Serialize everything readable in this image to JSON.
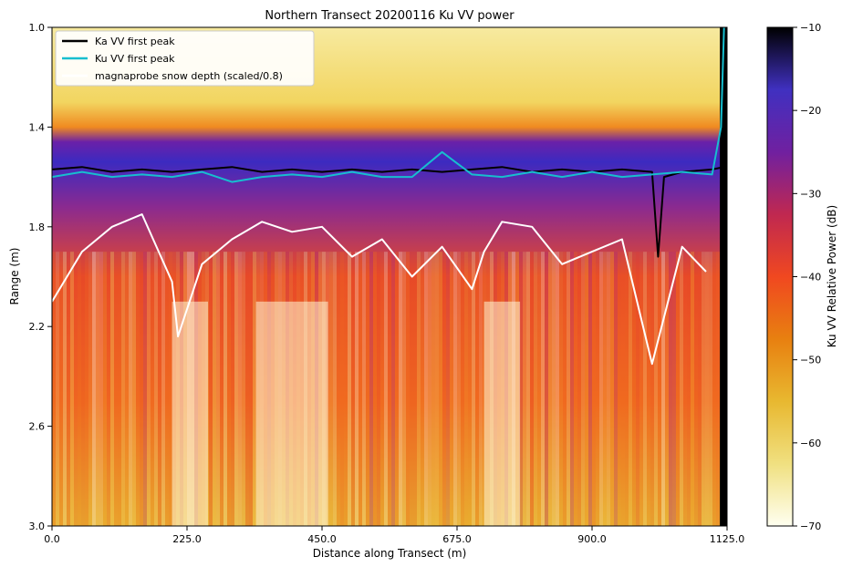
{
  "chart_data": {
    "type": "heatmap",
    "title": "Northern Transect 20200116 Ku VV power",
    "xlabel": "Distance along Transect (m)",
    "ylabel": "Range (m)",
    "xlim": [
      0,
      1125
    ],
    "ylim": [
      3.0,
      1.0
    ],
    "x_ticks": [
      "0.0",
      "225.0",
      "450.0",
      "675.0",
      "900.0",
      "1125.0"
    ],
    "y_ticks": [
      "1.0",
      "1.4",
      "1.8",
      "2.2",
      "2.6",
      "3.0"
    ],
    "colorbar": {
      "label": "Ku VV Relative Power (dB)",
      "range": [
        -70,
        -10
      ],
      "ticks": [
        "−10",
        "−20",
        "−30",
        "−40",
        "−50",
        "−60",
        "−70"
      ],
      "colormap": [
        "#fffff0",
        "#f0e080",
        "#e8b830",
        "#e88010",
        "#f04820",
        "#c02850",
        "#7020a0",
        "#4030c0",
        "#000000"
      ]
    },
    "legend": {
      "placement": "top-left",
      "entries": [
        {
          "label": "Ka VV first peak",
          "color": "#000000"
        },
        {
          "label": "Ku VV first peak",
          "color": "#17becf"
        },
        {
          "label": "magnaprobe snow depth (scaled/0.8)",
          "color": "#ffffff"
        }
      ]
    },
    "grid": false,
    "series": [
      {
        "name": "Ka VV first peak",
        "color": "#000000",
        "x": [
          0,
          50,
          100,
          150,
          200,
          250,
          300,
          350,
          400,
          450,
          500,
          550,
          600,
          650,
          700,
          750,
          800,
          850,
          900,
          950,
          1000,
          1010,
          1020,
          1050,
          1100,
          1120
        ],
        "y": [
          1.57,
          1.56,
          1.58,
          1.57,
          1.58,
          1.57,
          1.56,
          1.58,
          1.57,
          1.58,
          1.57,
          1.58,
          1.57,
          1.58,
          1.57,
          1.56,
          1.58,
          1.57,
          1.58,
          1.57,
          1.58,
          1.92,
          1.6,
          1.58,
          1.57,
          1.56
        ]
      },
      {
        "name": "Ku VV first peak",
        "color": "#17becf",
        "x": [
          0,
          50,
          100,
          150,
          200,
          250,
          300,
          350,
          400,
          450,
          500,
          550,
          600,
          650,
          700,
          750,
          800,
          850,
          900,
          950,
          1000,
          1050,
          1100,
          1115,
          1120
        ],
        "y": [
          1.6,
          1.58,
          1.6,
          1.59,
          1.6,
          1.58,
          1.62,
          1.6,
          1.59,
          1.6,
          1.58,
          1.6,
          1.6,
          1.5,
          1.59,
          1.6,
          1.58,
          1.6,
          1.58,
          1.6,
          1.59,
          1.58,
          1.59,
          1.4,
          1.0
        ]
      },
      {
        "name": "magnaprobe snow depth (scaled/0.8)",
        "color": "#ffffff",
        "x": [
          0,
          50,
          100,
          150,
          200,
          210,
          250,
          300,
          350,
          400,
          450,
          500,
          550,
          600,
          650,
          700,
          720,
          750,
          800,
          850,
          900,
          950,
          1000,
          1050,
          1090
        ],
        "y": [
          2.1,
          1.9,
          1.8,
          1.75,
          2.02,
          2.24,
          1.95,
          1.85,
          1.78,
          1.82,
          1.8,
          1.92,
          1.85,
          2.0,
          1.88,
          2.05,
          1.9,
          1.78,
          1.8,
          1.95,
          1.9,
          1.85,
          2.35,
          1.88,
          1.98
        ]
      }
    ]
  }
}
